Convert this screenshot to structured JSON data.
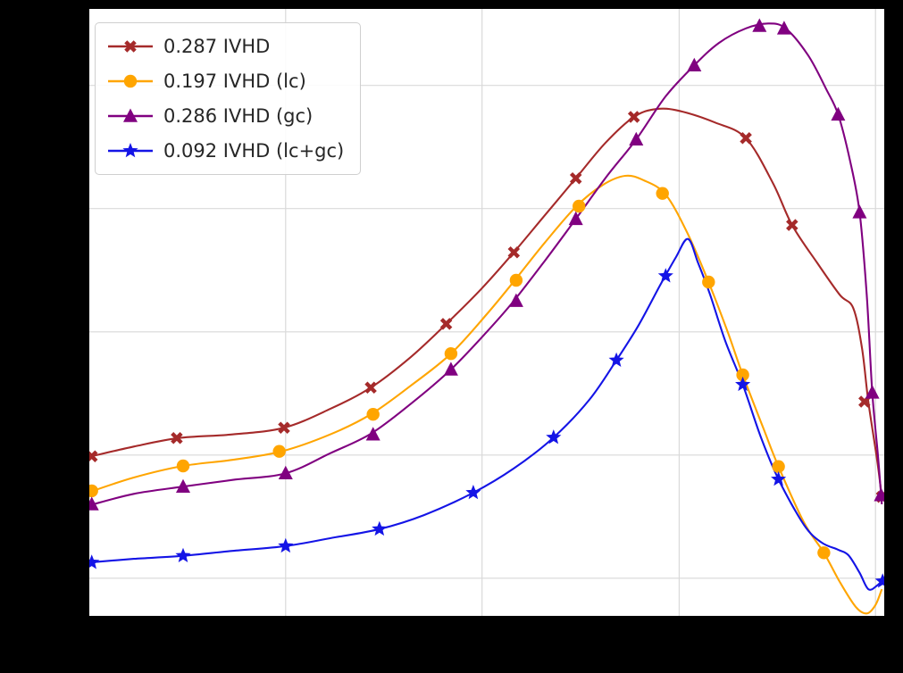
{
  "figure": {
    "background": "#000000",
    "plot_background": "#ffffff",
    "grid_color": "#d9d9d9",
    "legend_text_color": "#262626"
  },
  "chart_data": {
    "type": "line",
    "title": "",
    "xlabel": "",
    "ylabel": "",
    "grid": "on",
    "legend_position": "upper-left",
    "x_axis": {
      "range": [
        0,
        1
      ],
      "gridlines": [
        0.247,
        0.494,
        0.742,
        0.989
      ],
      "tick_labels_visible": false
    },
    "y_axis": {
      "range": [
        0,
        1
      ],
      "gridlines": [
        0.062,
        0.265,
        0.468,
        0.671,
        0.874
      ],
      "tick_labels_visible": false
    },
    "series": [
      {
        "name": "0.287 IVHD",
        "color": "#A52A2A",
        "marker": "x",
        "points": [
          [
            0.0,
            0.262
          ],
          [
            0.056,
            0.279
          ],
          [
            0.112,
            0.293
          ],
          [
            0.18,
            0.299
          ],
          [
            0.245,
            0.31
          ],
          [
            0.303,
            0.341
          ],
          [
            0.354,
            0.376
          ],
          [
            0.404,
            0.426
          ],
          [
            0.449,
            0.481
          ],
          [
            0.494,
            0.54
          ],
          [
            0.534,
            0.599
          ],
          [
            0.573,
            0.66
          ],
          [
            0.612,
            0.721
          ],
          [
            0.649,
            0.779
          ],
          [
            0.685,
            0.822
          ],
          [
            0.713,
            0.835
          ],
          [
            0.742,
            0.832
          ],
          [
            0.787,
            0.813
          ],
          [
            0.826,
            0.787
          ],
          [
            0.86,
            0.713
          ],
          [
            0.884,
            0.644
          ],
          [
            0.916,
            0.581
          ],
          [
            0.944,
            0.529
          ],
          [
            0.961,
            0.507
          ],
          [
            0.972,
            0.441
          ],
          [
            0.98,
            0.353
          ],
          [
            0.991,
            0.257
          ],
          [
            0.997,
            0.196
          ]
        ],
        "marker_points": [
          [
            0.003,
            0.263
          ],
          [
            0.11,
            0.293
          ],
          [
            0.245,
            0.31
          ],
          [
            0.354,
            0.376
          ],
          [
            0.449,
            0.481
          ],
          [
            0.534,
            0.599
          ],
          [
            0.612,
            0.721
          ],
          [
            0.685,
            0.822
          ],
          [
            0.826,
            0.787
          ],
          [
            0.884,
            0.644
          ],
          [
            0.975,
            0.353
          ],
          [
            0.997,
            0.196
          ]
        ]
      },
      {
        "name": "0.197 IVHD (lc)",
        "color": "#FFA500",
        "marker": "circle",
        "points": [
          [
            0.0,
            0.204
          ],
          [
            0.056,
            0.228
          ],
          [
            0.118,
            0.247
          ],
          [
            0.18,
            0.257
          ],
          [
            0.242,
            0.271
          ],
          [
            0.303,
            0.299
          ],
          [
            0.354,
            0.332
          ],
          [
            0.404,
            0.379
          ],
          [
            0.455,
            0.432
          ],
          [
            0.5,
            0.497
          ],
          [
            0.534,
            0.551
          ],
          [
            0.573,
            0.615
          ],
          [
            0.612,
            0.674
          ],
          [
            0.646,
            0.71
          ],
          [
            0.674,
            0.725
          ],
          [
            0.697,
            0.718
          ],
          [
            0.725,
            0.694
          ],
          [
            0.753,
            0.629
          ],
          [
            0.779,
            0.55
          ],
          [
            0.803,
            0.468
          ],
          [
            0.822,
            0.397
          ],
          [
            0.848,
            0.309
          ],
          [
            0.867,
            0.246
          ],
          [
            0.899,
            0.154
          ],
          [
            0.924,
            0.104
          ],
          [
            0.944,
            0.056
          ],
          [
            0.964,
            0.015
          ],
          [
            0.978,
            0.004
          ],
          [
            0.989,
            0.018
          ],
          [
            0.997,
            0.044
          ]
        ],
        "marker_points": [
          [
            0.003,
            0.206
          ],
          [
            0.118,
            0.247
          ],
          [
            0.239,
            0.271
          ],
          [
            0.357,
            0.332
          ],
          [
            0.455,
            0.432
          ],
          [
            0.537,
            0.553
          ],
          [
            0.616,
            0.675
          ],
          [
            0.721,
            0.696
          ],
          [
            0.779,
            0.55
          ],
          [
            0.822,
            0.397
          ],
          [
            0.867,
            0.246
          ],
          [
            0.924,
            0.104
          ]
        ]
      },
      {
        "name": "0.286 IVHD (gc)",
        "color": "#800080",
        "marker": "triangle",
        "points": [
          [
            0.0,
            0.182
          ],
          [
            0.056,
            0.201
          ],
          [
            0.118,
            0.213
          ],
          [
            0.18,
            0.224
          ],
          [
            0.247,
            0.235
          ],
          [
            0.303,
            0.268
          ],
          [
            0.354,
            0.3
          ],
          [
            0.404,
            0.349
          ],
          [
            0.455,
            0.406
          ],
          [
            0.5,
            0.468
          ],
          [
            0.534,
            0.519
          ],
          [
            0.573,
            0.585
          ],
          [
            0.612,
            0.654
          ],
          [
            0.652,
            0.726
          ],
          [
            0.688,
            0.785
          ],
          [
            0.725,
            0.856
          ],
          [
            0.761,
            0.907
          ],
          [
            0.792,
            0.944
          ],
          [
            0.826,
            0.968
          ],
          [
            0.854,
            0.976
          ],
          [
            0.876,
            0.968
          ],
          [
            0.904,
            0.924
          ],
          [
            0.927,
            0.868
          ],
          [
            0.942,
            0.826
          ],
          [
            0.957,
            0.75
          ],
          [
            0.969,
            0.665
          ],
          [
            0.978,
            0.529
          ],
          [
            0.985,
            0.368
          ],
          [
            0.992,
            0.265
          ],
          [
            0.997,
            0.184
          ]
        ],
        "marker_points": [
          [
            0.003,
            0.184
          ],
          [
            0.118,
            0.213
          ],
          [
            0.247,
            0.235
          ],
          [
            0.357,
            0.299
          ],
          [
            0.455,
            0.406
          ],
          [
            0.537,
            0.519
          ],
          [
            0.612,
            0.654
          ],
          [
            0.688,
            0.785
          ],
          [
            0.761,
            0.907
          ],
          [
            0.843,
            0.972
          ],
          [
            0.874,
            0.968
          ],
          [
            0.942,
            0.826
          ],
          [
            0.969,
            0.665
          ],
          [
            0.985,
            0.368
          ],
          [
            0.996,
            0.199
          ]
        ]
      },
      {
        "name": "0.092 IVHD (lc+gc)",
        "color": "#1414E6",
        "marker": "star",
        "points": [
          [
            0.0,
            0.088
          ],
          [
            0.056,
            0.094
          ],
          [
            0.118,
            0.099
          ],
          [
            0.18,
            0.107
          ],
          [
            0.247,
            0.115
          ],
          [
            0.303,
            0.128
          ],
          [
            0.365,
            0.143
          ],
          [
            0.421,
            0.166
          ],
          [
            0.483,
            0.203
          ],
          [
            0.534,
            0.243
          ],
          [
            0.584,
            0.294
          ],
          [
            0.629,
            0.356
          ],
          [
            0.663,
            0.421
          ],
          [
            0.691,
            0.479
          ],
          [
            0.719,
            0.547
          ],
          [
            0.738,
            0.591
          ],
          [
            0.753,
            0.621
          ],
          [
            0.766,
            0.581
          ],
          [
            0.781,
            0.529
          ],
          [
            0.8,
            0.453
          ],
          [
            0.822,
            0.381
          ],
          [
            0.845,
            0.294
          ],
          [
            0.867,
            0.225
          ],
          [
            0.899,
            0.15
          ],
          [
            0.921,
            0.121
          ],
          [
            0.942,
            0.109
          ],
          [
            0.955,
            0.1
          ],
          [
            0.969,
            0.071
          ],
          [
            0.98,
            0.044
          ],
          [
            0.991,
            0.05
          ],
          [
            1.0,
            0.063
          ]
        ],
        "marker_points": [
          [
            0.003,
            0.088
          ],
          [
            0.118,
            0.099
          ],
          [
            0.247,
            0.115
          ],
          [
            0.365,
            0.143
          ],
          [
            0.483,
            0.203
          ],
          [
            0.584,
            0.294
          ],
          [
            0.663,
            0.421
          ],
          [
            0.725,
            0.56
          ],
          [
            0.822,
            0.381
          ],
          [
            0.867,
            0.225
          ],
          [
            0.998,
            0.057
          ]
        ]
      }
    ]
  }
}
